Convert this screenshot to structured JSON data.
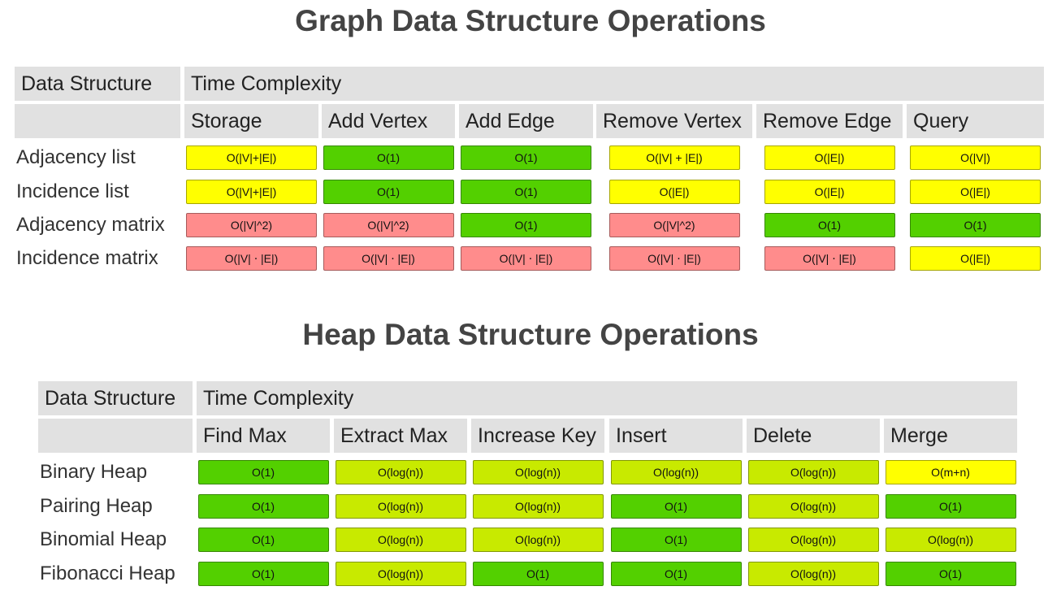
{
  "tables": [
    {
      "title": "Graph Data Structure Operations",
      "header": {
        "first": "Data Structure",
        "group": "Time Complexity"
      },
      "columns": [
        "Storage",
        "Add Vertex",
        "Add Edge",
        "Remove Vertex",
        "Remove Edge",
        "Query"
      ],
      "rows": [
        {
          "label": "Adjacency list",
          "cells": [
            {
              "text": "O(|V|+|E|)",
              "color": "#ffff00"
            },
            {
              "text": "O(1)",
              "color": "#53d000"
            },
            {
              "text": "O(1)",
              "color": "#53d000"
            },
            {
              "text": "O(|V| + |E|)",
              "color": "#ffff00"
            },
            {
              "text": "O(|E|)",
              "color": "#ffff00"
            },
            {
              "text": "O(|V|)",
              "color": "#ffff00"
            }
          ]
        },
        {
          "label": "Incidence list",
          "cells": [
            {
              "text": "O(|V|+|E|)",
              "color": "#ffff00"
            },
            {
              "text": "O(1)",
              "color": "#53d000"
            },
            {
              "text": "O(1)",
              "color": "#53d000"
            },
            {
              "text": "O(|E|)",
              "color": "#ffff00"
            },
            {
              "text": "O(|E|)",
              "color": "#ffff00"
            },
            {
              "text": "O(|E|)",
              "color": "#ffff00"
            }
          ]
        },
        {
          "label": "Adjacency matrix",
          "cells": [
            {
              "text": "O(|V|^2)",
              "color": "#ff8c8c"
            },
            {
              "text": "O(|V|^2)",
              "color": "#ff8c8c"
            },
            {
              "text": "O(1)",
              "color": "#53d000"
            },
            {
              "text": "O(|V|^2)",
              "color": "#ff8c8c"
            },
            {
              "text": "O(1)",
              "color": "#53d000"
            },
            {
              "text": "O(1)",
              "color": "#53d000"
            }
          ]
        },
        {
          "label": "Incidence matrix",
          "cells": [
            {
              "text": "O(|V| ⋅ |E|)",
              "color": "#ff8c8c"
            },
            {
              "text": "O(|V| ⋅ |E|)",
              "color": "#ff8c8c"
            },
            {
              "text": "O(|V| ⋅ |E|)",
              "color": "#ff8c8c"
            },
            {
              "text": "O(|V| ⋅ |E|)",
              "color": "#ff8c8c"
            },
            {
              "text": "O(|V| ⋅ |E|)",
              "color": "#ff8c8c"
            },
            {
              "text": "O(|E|)",
              "color": "#ffff00"
            }
          ]
        }
      ]
    },
    {
      "title": "Heap Data Structure Operations",
      "header": {
        "first": "Data Structure",
        "group": "Time Complexity"
      },
      "columns": [
        "Find Max",
        "Extract Max",
        "Increase Key",
        "Insert",
        "Delete",
        "Merge"
      ],
      "rows": [
        {
          "label": "Binary Heap",
          "cells": [
            {
              "text": "O(1)",
              "color": "#53d000"
            },
            {
              "text": "O(log(n))",
              "color": "#c8ea00"
            },
            {
              "text": "O(log(n))",
              "color": "#c8ea00"
            },
            {
              "text": "O(log(n))",
              "color": "#c8ea00"
            },
            {
              "text": "O(log(n))",
              "color": "#c8ea00"
            },
            {
              "text": "O(m+n)",
              "color": "#ffff00"
            }
          ]
        },
        {
          "label": "Pairing Heap",
          "cells": [
            {
              "text": "O(1)",
              "color": "#53d000"
            },
            {
              "text": "O(log(n))",
              "color": "#c8ea00"
            },
            {
              "text": "O(log(n))",
              "color": "#c8ea00"
            },
            {
              "text": "O(1)",
              "color": "#53d000"
            },
            {
              "text": "O(log(n))",
              "color": "#c8ea00"
            },
            {
              "text": "O(1)",
              "color": "#53d000"
            }
          ]
        },
        {
          "label": "Binomial Heap",
          "cells": [
            {
              "text": "O(1)",
              "color": "#53d000"
            },
            {
              "text": "O(log(n))",
              "color": "#c8ea00"
            },
            {
              "text": "O(log(n))",
              "color": "#c8ea00"
            },
            {
              "text": "O(1)",
              "color": "#53d000"
            },
            {
              "text": "O(log(n))",
              "color": "#c8ea00"
            },
            {
              "text": "O(log(n))",
              "color": "#c8ea00"
            }
          ]
        },
        {
          "label": "Fibonacci Heap",
          "cells": [
            {
              "text": "O(1)",
              "color": "#53d000"
            },
            {
              "text": "O(log(n))",
              "color": "#c8ea00"
            },
            {
              "text": "O(1)",
              "color": "#53d000"
            },
            {
              "text": "O(1)",
              "color": "#53d000"
            },
            {
              "text": "O(log(n))",
              "color": "#c8ea00"
            },
            {
              "text": "O(1)",
              "color": "#53d000"
            }
          ]
        }
      ]
    }
  ]
}
